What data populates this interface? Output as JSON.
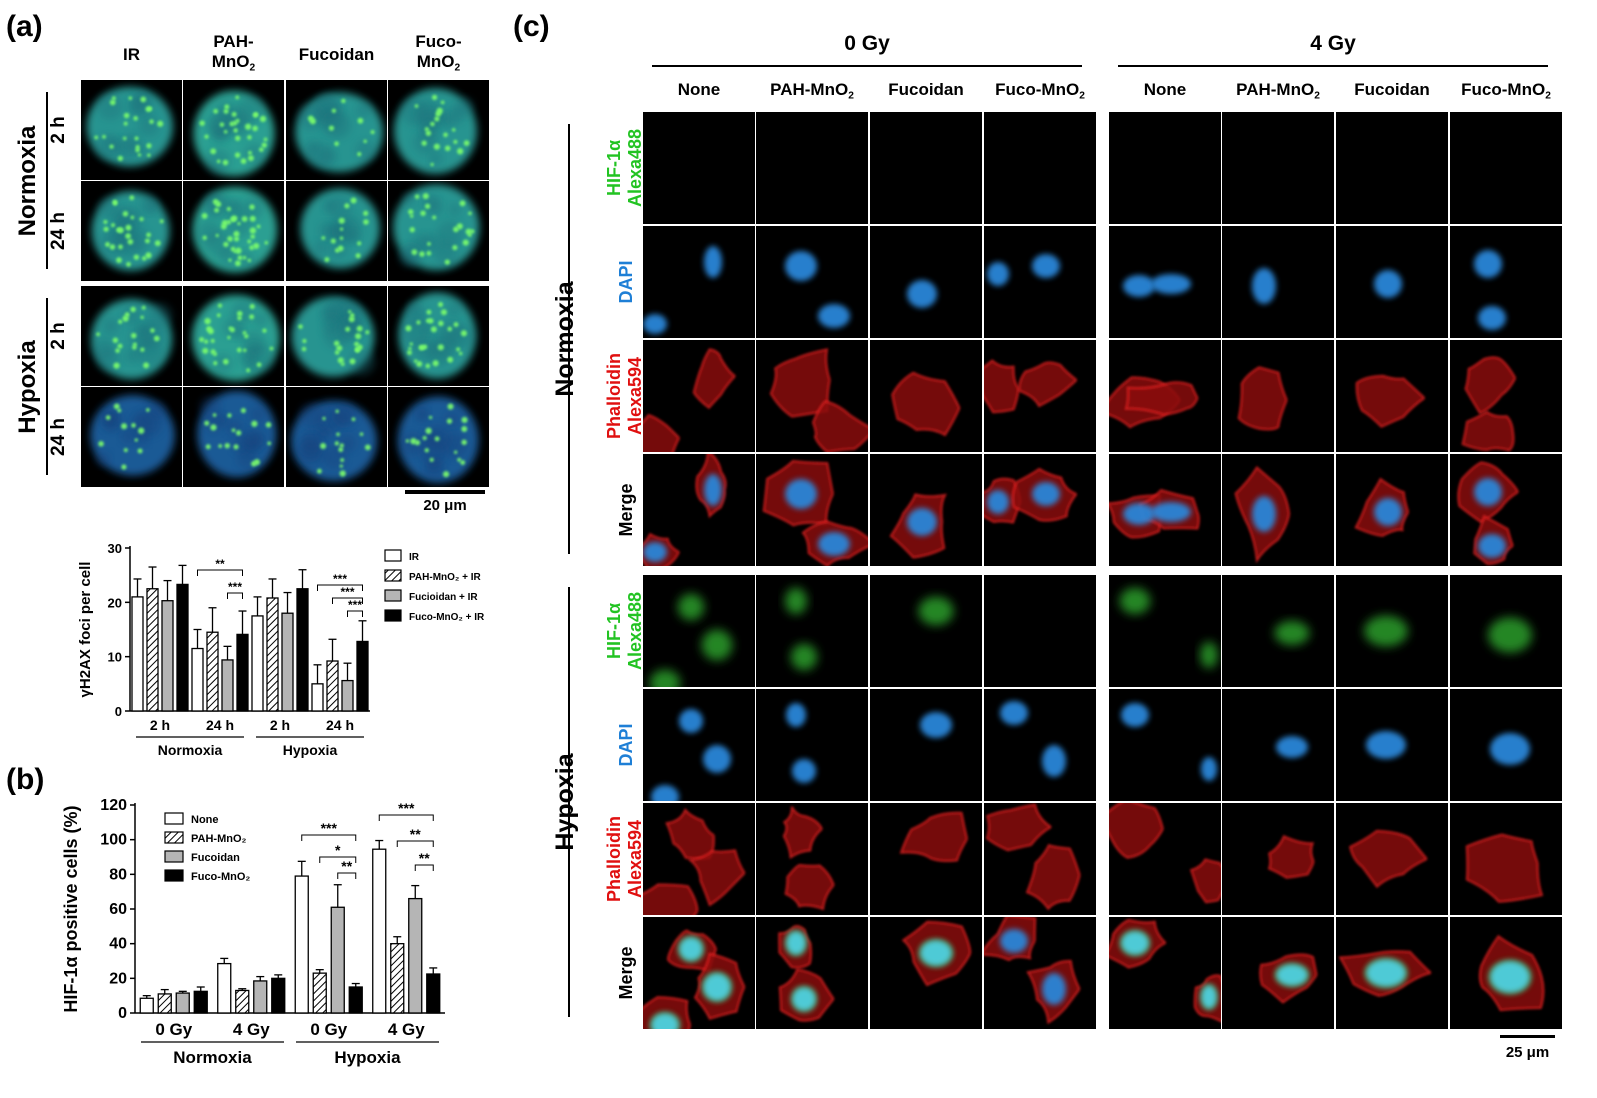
{
  "panel_a": {
    "letter": "(a)",
    "columns": [
      {
        "main": "IR",
        "sub": "",
        "tail": ""
      },
      {
        "main": "PAH-",
        "sub": "",
        "tail": "",
        "line2": "MnO",
        "line2_sub": "2"
      },
      {
        "main": "Fucoidan",
        "sub": "",
        "tail": ""
      },
      {
        "main": "Fuco-",
        "sub": "",
        "tail": "",
        "line2": "MnO",
        "line2_sub": "2"
      }
    ],
    "groups": [
      {
        "label": "Normoxia",
        "rows": [
          "2 h",
          "24 h"
        ]
      },
      {
        "label": "Hypoxia",
        "rows": [
          "2 h",
          "24 h"
        ]
      }
    ],
    "scalebar": "20 μm"
  },
  "chart_a": {
    "type": "bar",
    "ylabel": "γH2AX foci per cell",
    "ylim": [
      0,
      30
    ],
    "yticks": [
      0,
      10,
      20,
      30
    ],
    "xgroups": [
      {
        "tick": "2 h",
        "condition": "Normoxia"
      },
      {
        "tick": "24 h",
        "condition": "Normoxia"
      },
      {
        "tick": "2 h",
        "condition": "Hypoxia"
      },
      {
        "tick": "24 h",
        "condition": "Hypoxia"
      }
    ],
    "conditions": [
      "Normoxia",
      "Hypoxia"
    ],
    "series": [
      {
        "name": "IR",
        "fill": "white",
        "values": [
          21,
          11.5,
          17.5,
          5
        ],
        "err": [
          3.3,
          3.5,
          3.5,
          3.5
        ]
      },
      {
        "name": "PAH-MnO₂ + IR",
        "fill": "hatch",
        "values": [
          22.5,
          14.5,
          20.8,
          9.2
        ],
        "err": [
          4,
          4.5,
          3.5,
          4
        ]
      },
      {
        "name": "Fucioidan + IR",
        "fill": "grey",
        "values": [
          20.3,
          9.4,
          18,
          5.6
        ],
        "err": [
          3.7,
          2.5,
          3.8,
          3.2
        ]
      },
      {
        "name": "Fuco-MnO₂ + IR",
        "fill": "black",
        "values": [
          23.3,
          14.1,
          22.5,
          12.8
        ],
        "err": [
          3.5,
          4.3,
          3.5,
          3.8
        ]
      }
    ],
    "sig": [
      "**",
      "***",
      "***",
      "***",
      "***"
    ]
  },
  "chart_b": {
    "letter": "(b)",
    "type": "bar",
    "ylabel": "HIF-1α positive cells (%)",
    "ylim": [
      0,
      120
    ],
    "yticks": [
      0,
      20,
      40,
      60,
      80,
      100,
      120
    ],
    "xgroups": [
      {
        "tick": "0 Gy",
        "condition": "Normoxia"
      },
      {
        "tick": "4 Gy",
        "condition": "Normoxia"
      },
      {
        "tick": "0 Gy",
        "condition": "Hypoxia"
      },
      {
        "tick": "4 Gy",
        "condition": "Hypoxia"
      }
    ],
    "conditions": [
      "Normoxia",
      "Hypoxia"
    ],
    "series": [
      {
        "name": "None",
        "fill": "white",
        "values": [
          8.5,
          28.5,
          79,
          94.5
        ],
        "err": [
          1.5,
          3,
          8.5,
          5
        ]
      },
      {
        "name": "PAH-MnO₂",
        "fill": "hatch",
        "values": [
          11,
          13,
          23,
          40
        ],
        "err": [
          2.5,
          1,
          2,
          4
        ]
      },
      {
        "name": "Fucoidan",
        "fill": "grey",
        "values": [
          11.5,
          18.5,
          61,
          66
        ],
        "err": [
          1,
          2.5,
          13,
          7.5
        ]
      },
      {
        "name": "Fuco-MnO₂",
        "fill": "black",
        "values": [
          12.5,
          20,
          15,
          22.5
        ],
        "err": [
          2.5,
          2,
          2,
          3.5
        ]
      }
    ],
    "sig": [
      "***",
      "*",
      "**",
      "***",
      "**",
      "**"
    ]
  },
  "panel_c": {
    "letter": "(c)",
    "doses": [
      "0 Gy",
      "4 Gy"
    ],
    "treatments": [
      "None",
      "PAH-MnO",
      "Fucoidan",
      "Fuco-MnO"
    ],
    "treatment_subs": [
      "",
      "2",
      "",
      "2"
    ],
    "conditions": [
      "Normoxia",
      "Hypoxia"
    ],
    "stains": [
      {
        "line1": "HIF-1α",
        "line2": "Alexa488",
        "color": "#22c322"
      },
      {
        "line1": "DAPI",
        "line2": "",
        "color": "#1e7fd6"
      },
      {
        "line1": "Phalloidin",
        "line2": "Alexa594",
        "color": "#e01010"
      },
      {
        "line1": "Merge",
        "line2": "",
        "color": "#000000"
      }
    ],
    "scalebar": "25 μm"
  }
}
